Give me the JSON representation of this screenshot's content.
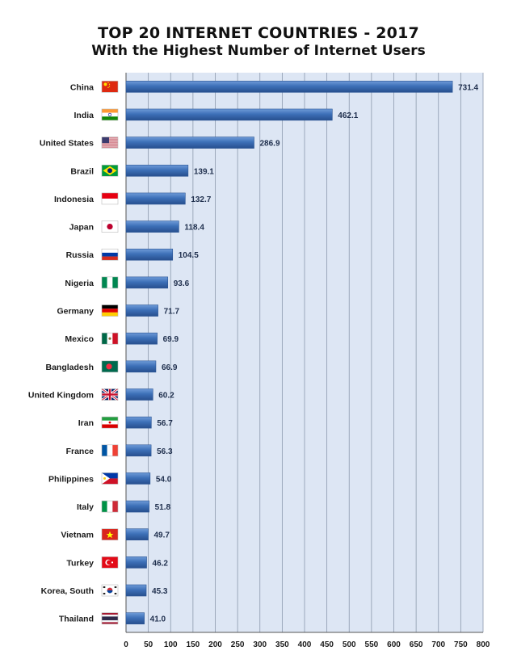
{
  "chart_data": {
    "type": "bar",
    "orientation": "horizontal",
    "title": "TOP 20 INTERNET COUNTRIES  - 2017",
    "subtitle": "With the Highest Number of Internet Users",
    "categories": [
      "China",
      "India",
      "United States",
      "Brazil",
      "Indonesia",
      "Japan",
      "Russia",
      "Nigeria",
      "Germany",
      "Mexico",
      "Bangladesh",
      "United Kingdom",
      "Iran",
      "France",
      "Philippines",
      "Italy",
      "Vietnam",
      "Turkey",
      "Korea, South",
      "Thailand"
    ],
    "values": [
      731.4,
      462.1,
      286.9,
      139.1,
      132.7,
      118.4,
      104.5,
      93.6,
      71.7,
      69.9,
      66.9,
      60.2,
      56.7,
      56.3,
      54.0,
      51.8,
      49.7,
      46.2,
      45.3,
      41.0
    ],
    "value_labels": [
      "731.4",
      "462.1",
      "286.9",
      "139.1",
      "132.7",
      "118.4",
      "104.5",
      "93.6",
      "71.7",
      "69.9",
      "66.9",
      "60.2",
      "56.7",
      "56.3",
      "54.0",
      "51.8",
      "49.7",
      "46.2",
      "45.3",
      "41.0"
    ],
    "flags": [
      "china-flag-icon",
      "india-flag-icon",
      "united-states-flag-icon",
      "brazil-flag-icon",
      "indonesia-flag-icon",
      "japan-flag-icon",
      "russia-flag-icon",
      "nigeria-flag-icon",
      "germany-flag-icon",
      "mexico-flag-icon",
      "bangladesh-flag-icon",
      "united-kingdom-flag-icon",
      "iran-flag-icon",
      "france-flag-icon",
      "philippines-flag-icon",
      "italy-flag-icon",
      "vietnam-flag-icon",
      "turkey-flag-icon",
      "korea-south-flag-icon",
      "thailand-flag-icon"
    ],
    "xlim": [
      0,
      800
    ],
    "xticks": [
      0,
      50,
      100,
      150,
      200,
      250,
      300,
      350,
      400,
      450,
      500,
      550,
      600,
      650,
      700,
      750,
      800
    ],
    "grid": true,
    "legend": "none",
    "colors": {
      "bar": "#3d70b8",
      "plot_bg": "#dde6f4",
      "grid": "#8c99ad",
      "text": "#1a1a1a"
    }
  }
}
